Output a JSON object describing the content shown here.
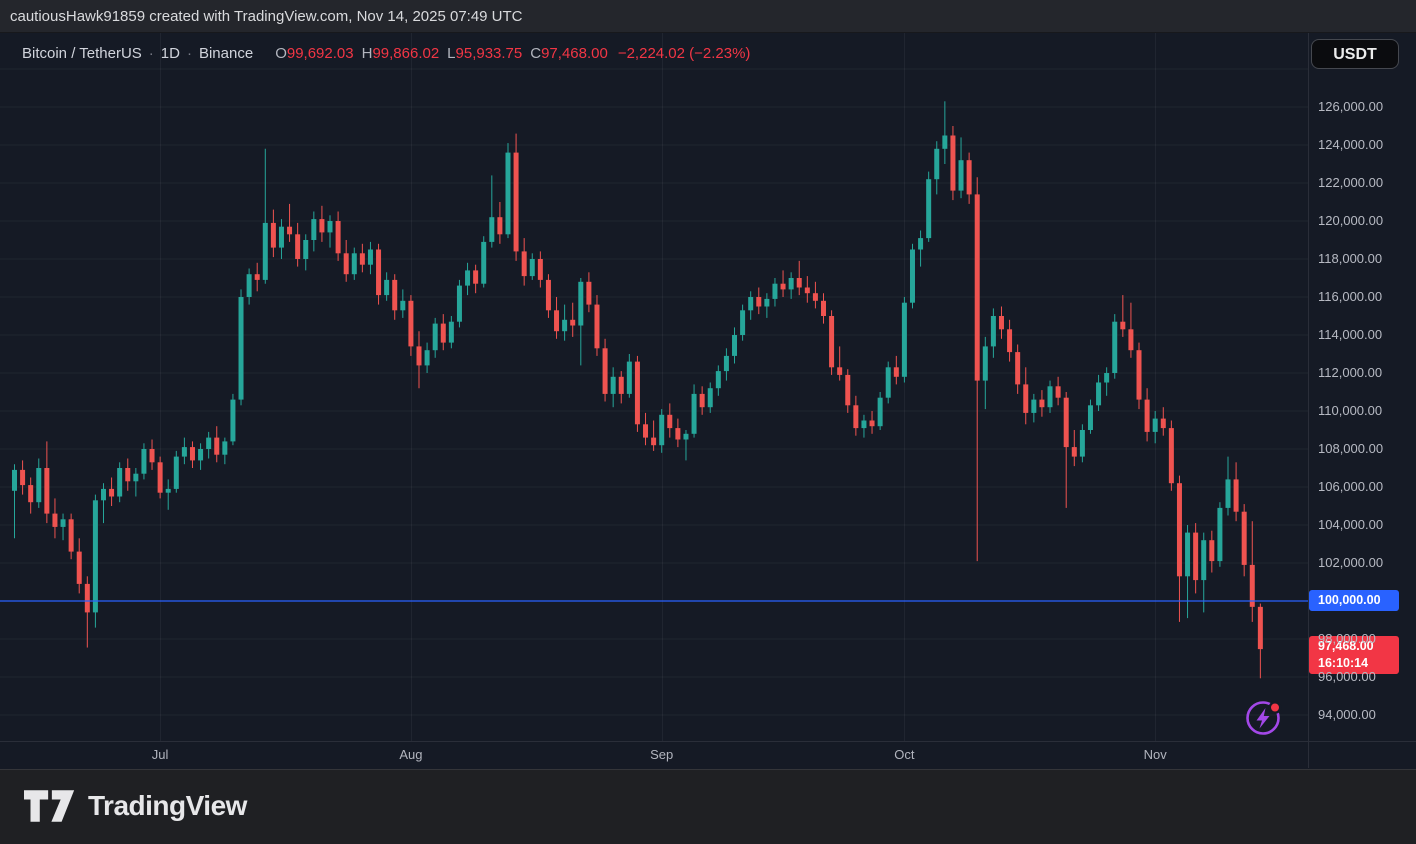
{
  "attribution_bar": {
    "text": "cautiousHawk91859 created with TradingView.com, Nov 14, 2025 07:49 UTC"
  },
  "legend": {
    "symbol": "Bitcoin / TetherUS",
    "separator": "·",
    "interval": "1D",
    "exchange": "Binance",
    "o_label": "O",
    "o_value": "99,692.03",
    "h_label": "H",
    "h_value": "99,866.02",
    "l_label": "L",
    "l_value": "95,933.75",
    "c_label": "C",
    "c_value": "97,468.00",
    "change": "−2,224.02 (−2.23%)"
  },
  "currency_button": {
    "label": "USDT"
  },
  "price_axis": {
    "ticks": [
      {
        "value": 126000,
        "label": "126,000.00"
      },
      {
        "value": 124000,
        "label": "124,000.00"
      },
      {
        "value": 122000,
        "label": "122,000.00"
      },
      {
        "value": 120000,
        "label": "120,000.00"
      },
      {
        "value": 118000,
        "label": "118,000.00"
      },
      {
        "value": 116000,
        "label": "116,000.00"
      },
      {
        "value": 114000,
        "label": "114,000.00"
      },
      {
        "value": 112000,
        "label": "112,000.00"
      },
      {
        "value": 110000,
        "label": "110,000.00"
      },
      {
        "value": 108000,
        "label": "108,000.00"
      },
      {
        "value": 106000,
        "label": "106,000.00"
      },
      {
        "value": 104000,
        "label": "104,000.00"
      },
      {
        "value": 102000,
        "label": "102,000.00"
      },
      {
        "value": 98000,
        "label": "98,000.00"
      },
      {
        "value": 96000,
        "label": "96,000.00"
      },
      {
        "value": 94000,
        "label": "94,000.00"
      }
    ],
    "price_line_label": "100,000.00",
    "last_price_label": "97,468.00",
    "countdown": "16:10:14"
  },
  "footer": {
    "brand": "TradingView"
  },
  "colors": {
    "up": "#26a69a",
    "down": "#ef5350",
    "accent_blue": "#2962ff",
    "accent_red": "#f23645",
    "grid": "rgba(255,255,255,0.05)"
  },
  "chart_data": {
    "type": "candlestick",
    "title": "Bitcoin / TetherUS · 1D · Binance",
    "unit": "thousand USDT",
    "ylim": [
      92600,
      129900
    ],
    "grid": true,
    "horizontal_line": 100000,
    "last_price": 97468.0,
    "month_ticks": [
      {
        "label": "Jul",
        "index": 18
      },
      {
        "label": "Aug",
        "index": 49
      },
      {
        "label": "Sep",
        "index": 80
      },
      {
        "label": "Oct",
        "index": 110
      },
      {
        "label": "Nov",
        "index": 141
      }
    ],
    "candles_ohlc": [
      [
        105.8,
        107.2,
        103.3,
        106.9
      ],
      [
        106.9,
        107.4,
        105.6,
        106.1
      ],
      [
        106.1,
        106.5,
        104.6,
        105.2
      ],
      [
        105.2,
        107.5,
        104.9,
        107.0
      ],
      [
        107.0,
        108.4,
        104.1,
        104.6
      ],
      [
        104.6,
        105.4,
        103.3,
        103.9
      ],
      [
        103.9,
        104.6,
        103.2,
        104.3
      ],
      [
        104.3,
        104.6,
        102.2,
        102.6
      ],
      [
        102.6,
        103.3,
        100.4,
        100.9
      ],
      [
        100.9,
        101.3,
        97.55,
        99.4
      ],
      [
        99.4,
        105.6,
        98.6,
        105.3
      ],
      [
        105.3,
        106.2,
        104.1,
        105.9
      ],
      [
        105.9,
        106.5,
        105.0,
        105.5
      ],
      [
        105.5,
        107.3,
        105.2,
        107.0
      ],
      [
        107.0,
        107.5,
        105.8,
        106.3
      ],
      [
        106.3,
        107.0,
        105.5,
        106.7
      ],
      [
        106.7,
        108.3,
        106.4,
        108.0
      ],
      [
        108.0,
        108.5,
        106.9,
        107.3
      ],
      [
        107.3,
        107.6,
        105.4,
        105.7
      ],
      [
        105.7,
        106.4,
        104.8,
        105.9
      ],
      [
        105.9,
        107.9,
        105.7,
        107.6
      ],
      [
        107.6,
        108.6,
        107.2,
        108.1
      ],
      [
        108.1,
        108.4,
        107.0,
        107.4
      ],
      [
        107.4,
        108.3,
        106.9,
        108.0
      ],
      [
        108.0,
        108.9,
        107.5,
        108.6
      ],
      [
        108.6,
        109.2,
        107.3,
        107.7
      ],
      [
        107.7,
        108.6,
        107.2,
        108.4
      ],
      [
        108.4,
        110.9,
        108.2,
        110.6
      ],
      [
        110.6,
        116.4,
        110.3,
        116.0
      ],
      [
        116.0,
        117.5,
        115.6,
        117.2
      ],
      [
        117.2,
        117.8,
        116.3,
        116.9
      ],
      [
        116.9,
        123.8,
        116.7,
        119.9
      ],
      [
        119.9,
        120.6,
        118.1,
        118.6
      ],
      [
        118.6,
        120.1,
        118.0,
        119.7
      ],
      [
        119.7,
        120.9,
        118.9,
        119.3
      ],
      [
        119.3,
        119.9,
        117.6,
        118.0
      ],
      [
        118.0,
        119.3,
        117.4,
        119.0
      ],
      [
        119.0,
        120.5,
        118.4,
        120.1
      ],
      [
        120.1,
        120.8,
        118.9,
        119.4
      ],
      [
        119.4,
        120.3,
        118.6,
        120.0
      ],
      [
        120.0,
        120.5,
        117.9,
        118.3
      ],
      [
        118.3,
        119.0,
        116.8,
        117.2
      ],
      [
        117.2,
        118.6,
        116.9,
        118.3
      ],
      [
        118.3,
        118.8,
        117.3,
        117.7
      ],
      [
        117.7,
        118.9,
        117.2,
        118.5
      ],
      [
        118.5,
        118.8,
        115.6,
        116.1
      ],
      [
        116.1,
        117.3,
        115.8,
        116.9
      ],
      [
        116.9,
        117.2,
        114.8,
        115.3
      ],
      [
        115.3,
        116.4,
        114.9,
        115.8
      ],
      [
        115.8,
        116.1,
        112.9,
        113.4
      ],
      [
        113.4,
        114.2,
        111.2,
        112.4
      ],
      [
        112.4,
        113.6,
        112.0,
        113.2
      ],
      [
        113.2,
        114.9,
        112.8,
        114.6
      ],
      [
        114.6,
        115.1,
        113.2,
        113.6
      ],
      [
        113.6,
        115.0,
        113.3,
        114.7
      ],
      [
        114.7,
        116.9,
        114.4,
        116.6
      ],
      [
        116.6,
        117.8,
        116.1,
        117.4
      ],
      [
        117.4,
        117.7,
        116.2,
        116.7
      ],
      [
        116.7,
        119.2,
        116.5,
        118.9
      ],
      [
        118.9,
        122.4,
        118.6,
        120.2
      ],
      [
        120.2,
        121.0,
        118.8,
        119.3
      ],
      [
        119.3,
        124.1,
        119.1,
        123.6
      ],
      [
        123.6,
        124.6,
        117.9,
        118.4
      ],
      [
        118.4,
        119.1,
        116.6,
        117.1
      ],
      [
        117.1,
        118.3,
        116.9,
        118.0
      ],
      [
        118.0,
        118.4,
        116.5,
        116.9
      ],
      [
        116.9,
        117.2,
        114.9,
        115.3
      ],
      [
        115.3,
        116.0,
        113.8,
        114.2
      ],
      [
        114.2,
        115.6,
        113.7,
        114.8
      ],
      [
        114.8,
        115.7,
        113.9,
        114.5
      ],
      [
        114.5,
        117.0,
        112.4,
        116.8
      ],
      [
        116.8,
        117.3,
        115.2,
        115.6
      ],
      [
        115.6,
        116.1,
        112.9,
        113.3
      ],
      [
        113.3,
        113.8,
        110.5,
        110.9
      ],
      [
        110.9,
        112.3,
        110.2,
        111.8
      ],
      [
        111.8,
        112.1,
        110.4,
        110.9
      ],
      [
        110.9,
        113.0,
        110.7,
        112.6
      ],
      [
        112.6,
        112.9,
        108.9,
        109.3
      ],
      [
        109.3,
        109.9,
        108.2,
        108.6
      ],
      [
        108.6,
        109.5,
        107.9,
        108.2
      ],
      [
        108.2,
        110.1,
        107.8,
        109.8
      ],
      [
        109.8,
        110.4,
        108.6,
        109.1
      ],
      [
        109.1,
        109.6,
        108.1,
        108.5
      ],
      [
        108.5,
        109.0,
        107.4,
        108.8
      ],
      [
        108.8,
        111.4,
        108.6,
        110.9
      ],
      [
        110.9,
        111.3,
        109.8,
        110.2
      ],
      [
        110.2,
        111.5,
        109.9,
        111.2
      ],
      [
        111.2,
        112.4,
        110.8,
        112.1
      ],
      [
        112.1,
        113.3,
        111.6,
        112.9
      ],
      [
        112.9,
        114.4,
        112.5,
        114.0
      ],
      [
        114.0,
        115.6,
        113.7,
        115.3
      ],
      [
        115.3,
        116.3,
        114.8,
        116.0
      ],
      [
        116.0,
        116.5,
        115.1,
        115.5
      ],
      [
        115.5,
        116.2,
        114.9,
        115.9
      ],
      [
        115.9,
        117.0,
        115.5,
        116.7
      ],
      [
        116.7,
        117.4,
        116.0,
        116.4
      ],
      [
        116.4,
        117.3,
        115.9,
        117.0
      ],
      [
        117.0,
        117.9,
        116.1,
        116.5
      ],
      [
        116.5,
        117.1,
        115.7,
        116.2
      ],
      [
        116.2,
        116.8,
        115.4,
        115.8
      ],
      [
        115.8,
        116.2,
        114.6,
        115.0
      ],
      [
        115.0,
        115.3,
        111.9,
        112.3
      ],
      [
        112.3,
        113.4,
        111.6,
        111.9
      ],
      [
        111.9,
        112.2,
        109.9,
        110.3
      ],
      [
        110.3,
        110.8,
        108.7,
        109.1
      ],
      [
        109.1,
        109.8,
        108.6,
        109.5
      ],
      [
        109.5,
        110.0,
        108.8,
        109.2
      ],
      [
        109.2,
        111.0,
        109.0,
        110.7
      ],
      [
        110.7,
        112.6,
        110.4,
        112.3
      ],
      [
        112.3,
        112.9,
        111.4,
        111.8
      ],
      [
        111.8,
        116.0,
        111.5,
        115.7
      ],
      [
        115.7,
        118.8,
        115.4,
        118.5
      ],
      [
        118.5,
        119.5,
        117.6,
        119.1
      ],
      [
        119.1,
        122.6,
        118.9,
        122.2
      ],
      [
        122.2,
        124.2,
        121.4,
        123.8
      ],
      [
        123.8,
        126.3,
        123.0,
        124.5
      ],
      [
        124.5,
        125.0,
        121.1,
        121.6
      ],
      [
        121.6,
        124.4,
        121.2,
        123.2
      ],
      [
        123.2,
        123.6,
        120.9,
        121.4
      ],
      [
        121.4,
        122.3,
        102.1,
        111.6
      ],
      [
        111.6,
        113.9,
        110.1,
        113.4
      ],
      [
        113.4,
        115.4,
        112.8,
        115.0
      ],
      [
        115.0,
        115.5,
        113.8,
        114.3
      ],
      [
        114.3,
        114.8,
        112.6,
        113.1
      ],
      [
        113.1,
        113.5,
        110.9,
        111.4
      ],
      [
        111.4,
        112.3,
        109.3,
        109.9
      ],
      [
        109.9,
        110.9,
        109.4,
        110.6
      ],
      [
        110.6,
        111.1,
        109.7,
        110.2
      ],
      [
        110.2,
        111.6,
        109.9,
        111.3
      ],
      [
        111.3,
        111.8,
        110.3,
        110.7
      ],
      [
        110.7,
        111.0,
        104.9,
        108.1
      ],
      [
        108.1,
        109.0,
        107.1,
        107.6
      ],
      [
        107.6,
        109.3,
        107.3,
        109.0
      ],
      [
        109.0,
        110.6,
        108.8,
        110.3
      ],
      [
        110.3,
        111.9,
        110.0,
        111.5
      ],
      [
        111.5,
        112.3,
        110.8,
        112.0
      ],
      [
        112.0,
        115.1,
        111.7,
        114.7
      ],
      [
        114.7,
        116.1,
        113.9,
        114.3
      ],
      [
        114.3,
        115.7,
        112.8,
        113.2
      ],
      [
        113.2,
        113.6,
        110.1,
        110.6
      ],
      [
        110.6,
        111.2,
        108.4,
        108.9
      ],
      [
        108.9,
        110.0,
        108.3,
        109.6
      ],
      [
        109.6,
        110.2,
        108.7,
        109.1
      ],
      [
        109.1,
        109.5,
        105.8,
        106.2
      ],
      [
        106.2,
        106.6,
        98.9,
        101.3
      ],
      [
        101.3,
        104.0,
        99.1,
        103.6
      ],
      [
        103.6,
        104.1,
        100.4,
        101.1
      ],
      [
        101.1,
        103.6,
        99.4,
        103.2
      ],
      [
        103.2,
        103.7,
        101.5,
        102.1
      ],
      [
        102.1,
        105.2,
        101.8,
        104.9
      ],
      [
        104.9,
        107.6,
        104.5,
        106.4
      ],
      [
        106.4,
        107.3,
        104.2,
        104.7
      ],
      [
        104.7,
        105.1,
        101.3,
        101.9
      ],
      [
        101.9,
        104.2,
        98.9,
        99.692
      ],
      [
        99.692,
        99.866,
        95.933,
        97.468
      ]
    ]
  }
}
